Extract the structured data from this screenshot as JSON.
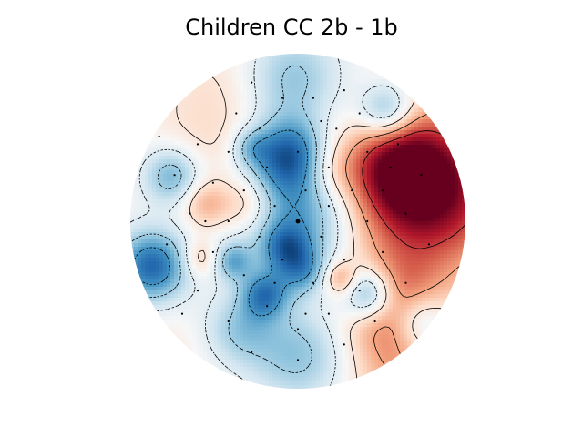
{
  "chart_data": {
    "type": "heatmap",
    "subtype": "scalp-topography",
    "title": "Children CC 2b - 1b",
    "colormap": "RdBu_r",
    "colormap_stops": [
      "#053061",
      "#2166ac",
      "#4393c3",
      "#92c5de",
      "#d1e5f0",
      "#f7f7f7",
      "#fddbc7",
      "#f4a582",
      "#d6604d",
      "#b2182b",
      "#67001f"
    ],
    "contours": {
      "negative_style": "dashed",
      "positive_style": "solid",
      "color": "#000000"
    },
    "sensors_visible": true,
    "highlighted_sensor": "center",
    "colorbar": false,
    "axes_visible": false,
    "field_sources": [
      {
        "u": 0.78,
        "v": -0.17,
        "amp": 1.0,
        "w": 0.33
      },
      {
        "u": 0.6,
        "v": -0.33,
        "amp": 0.55,
        "w": 0.2
      },
      {
        "u": 0.59,
        "v": 0.54,
        "amp": 0.7,
        "w": 0.2
      },
      {
        "u": 0.72,
        "v": 0.6,
        "amp": -0.6,
        "w": 0.13
      },
      {
        "u": 0.2,
        "v": -0.3,
        "amp": 0.22,
        "w": 0.12
      },
      {
        "u": 0.0,
        "v": -0.05,
        "amp": -0.6,
        "w": 0.25
      },
      {
        "u": -0.06,
        "v": -0.4,
        "amp": -0.7,
        "w": 0.15
      },
      {
        "u": -0.3,
        "v": -0.1,
        "amp": 0.35,
        "w": 0.12
      },
      {
        "u": -0.55,
        "v": -0.1,
        "amp": 0.35,
        "w": 0.1
      },
      {
        "u": -0.58,
        "v": 0.22,
        "amp": 0.3,
        "w": 0.08
      },
      {
        "u": -0.39,
        "v": 0.24,
        "amp": -0.45,
        "w": 0.08
      },
      {
        "u": -0.2,
        "v": 0.44,
        "amp": -0.6,
        "w": 0.1
      },
      {
        "u": 0.43,
        "v": 0.44,
        "amp": -0.75,
        "w": 0.11
      },
      {
        "u": 0.25,
        "v": 0.34,
        "amp": 0.4,
        "w": 0.07
      },
      {
        "u": -0.87,
        "v": 0.27,
        "amp": -0.8,
        "w": 0.15
      },
      {
        "u": -0.75,
        "v": -0.27,
        "amp": -0.5,
        "w": 0.12
      },
      {
        "u": -0.5,
        "v": -0.75,
        "amp": 0.15,
        "w": 0.25
      },
      {
        "u": 0.6,
        "v": 0.95,
        "amp": 0.3,
        "w": 0.2
      },
      {
        "u": -0.85,
        "v": 0.85,
        "amp": 0.1,
        "w": 0.25
      },
      {
        "u": 0.0,
        "v": 0.8,
        "amp": -0.4,
        "w": 0.2
      },
      {
        "u": -0.35,
        "v": 0.65,
        "amp": -0.35,
        "w": 0.15
      },
      {
        "u": -0.03,
        "v": -0.85,
        "amp": -0.4,
        "w": 0.2
      },
      {
        "u": 0.53,
        "v": -0.65,
        "amp": -0.6,
        "w": 0.12
      },
      {
        "u": -0.07,
        "v": 0.16,
        "amp": -0.45,
        "w": 0.1
      },
      {
        "u": 0.03,
        "v": 0.3,
        "amp": -0.4,
        "w": 0.1
      },
      {
        "u": -0.55,
        "v": -0.4,
        "amp": 0.1,
        "w": 0.2
      },
      {
        "u": -0.28,
        "v": -0.44,
        "amp": -0.3,
        "w": 0.08
      }
    ],
    "sensors": [
      [
        0.0,
        0.0
      ],
      [
        -0.1,
        -0.8
      ],
      [
        0.1,
        -0.8
      ],
      [
        -0.4,
        -0.7
      ],
      [
        0.4,
        -0.7
      ],
      [
        -0.25,
        -0.6
      ],
      [
        0.25,
        -0.6
      ],
      [
        -0.65,
        -0.5
      ],
      [
        0.65,
        -0.5
      ],
      [
        -0.45,
        -0.45
      ],
      [
        0.0,
        -0.45
      ],
      [
        0.45,
        -0.45
      ],
      [
        -0.2,
        -0.35
      ],
      [
        0.2,
        -0.35
      ],
      [
        -0.8,
        -0.3
      ],
      [
        0.8,
        -0.3
      ],
      [
        -0.55,
        -0.25
      ],
      [
        -0.35,
        -0.2
      ],
      [
        0.05,
        -0.2
      ],
      [
        0.35,
        -0.2
      ],
      [
        0.55,
        -0.2
      ],
      [
        -0.15,
        -0.1
      ],
      [
        0.2,
        -0.1
      ],
      [
        -0.7,
        -0.05
      ],
      [
        0.7,
        -0.05
      ],
      [
        -0.45,
        0.0
      ],
      [
        0.45,
        0.0
      ],
      [
        -0.25,
        0.1
      ],
      [
        0.15,
        0.1
      ],
      [
        -0.85,
        0.15
      ],
      [
        0.85,
        0.15
      ],
      [
        -0.55,
        0.2
      ],
      [
        0.55,
        0.2
      ],
      [
        -0.1,
        0.25
      ],
      [
        0.3,
        0.25
      ],
      [
        -0.35,
        0.35
      ],
      [
        0.1,
        0.4
      ],
      [
        0.4,
        0.45
      ],
      [
        -0.65,
        0.45
      ],
      [
        0.7,
        0.4
      ],
      [
        -0.2,
        0.55
      ],
      [
        0.2,
        0.6
      ],
      [
        -0.45,
        0.65
      ],
      [
        0.5,
        0.65
      ],
      [
        0.0,
        0.7
      ],
      [
        -0.3,
        0.85
      ],
      [
        0.3,
        0.8
      ],
      [
        0.0,
        0.9
      ],
      [
        -0.75,
        0.6
      ],
      [
        -0.9,
        -0.55
      ],
      [
        0.15,
        -0.65
      ],
      [
        -0.3,
        -0.9
      ],
      [
        0.05,
        0.6
      ],
      [
        0.3,
        -0.85
      ],
      [
        -0.6,
        0.0
      ],
      [
        0.6,
        -0.35
      ],
      [
        -0.15,
        0.4
      ]
    ]
  }
}
